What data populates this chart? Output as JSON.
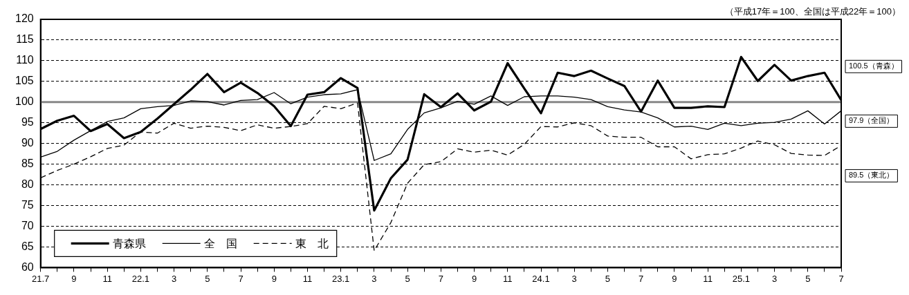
{
  "chart_data": {
    "type": "line",
    "subtitle": "（平成17年＝100、全国は平成22年＝100）",
    "categories": [
      "21.7",
      null,
      "9",
      null,
      "11",
      null,
      "22.1",
      null,
      "3",
      null,
      "5",
      null,
      "7",
      null,
      "9",
      null,
      "11",
      null,
      "23.1",
      null,
      "3",
      null,
      "5",
      null,
      "7",
      null,
      "9",
      null,
      "11",
      null,
      "24.1",
      null,
      "3",
      null,
      "5",
      null,
      "7",
      null,
      "9",
      null,
      "11",
      null,
      "25.1",
      null,
      "3",
      null,
      "5",
      null,
      "7"
    ],
    "series": [
      {
        "name": "青森県",
        "color": "#000000",
        "line_style": "solid",
        "values": [
          93.5,
          95.5,
          96.7,
          93,
          94.7,
          91.3,
          92.8,
          96,
          99.5,
          103,
          106.8,
          102.4,
          104.7,
          102.2,
          99,
          94.2,
          101.8,
          102.4,
          105.8,
          103.4,
          73.8,
          81.6,
          86.1,
          101.9,
          98.8,
          102.1,
          98,
          100.1,
          109.4,
          103.3,
          97.3,
          107.1,
          106.3,
          107.6,
          105.7,
          103.9,
          97.7,
          105.2,
          98.6,
          98.6,
          99,
          98.8,
          110.9,
          105.1,
          109,
          105.2,
          106.3,
          107.1,
          100.5
        ]
      },
      {
        "name": "全　国",
        "color": "#000000",
        "line_style": "solid",
        "values": [
          86.7,
          88.1,
          90.8,
          93.1,
          95.3,
          96.2,
          98.4,
          98.9,
          99.2,
          100.3,
          100.1,
          99.3,
          100.4,
          100.6,
          102.3,
          99.6,
          101.2,
          101.8,
          102,
          103,
          85.9,
          87.5,
          93.4,
          97.4,
          98.6,
          100.2,
          99.5,
          101.5,
          99.2,
          101.3,
          101.5,
          101.5,
          101.2,
          100.6,
          98.9,
          98.1,
          97.6,
          96.2,
          94,
          94.2,
          93.4,
          94.9,
          94.3,
          94.9,
          95.1,
          95.9,
          97.9,
          94.7,
          97.9
        ]
      },
      {
        "name": "東　北",
        "color": "#000000",
        "line_style": "dashed",
        "values": [
          81.7,
          83.5,
          85,
          86.8,
          88.8,
          89.6,
          92.8,
          92.5,
          94.9,
          93.7,
          94.2,
          93.9,
          93.1,
          94.5,
          93.7,
          94.1,
          94.8,
          99,
          98.4,
          99.8,
          64.1,
          70.9,
          80.4,
          84.9,
          85.6,
          88.7,
          87.9,
          88.4,
          87.2,
          89.8,
          94.1,
          94,
          95,
          94.3,
          91.8,
          91.5,
          91.5,
          89.2,
          89.2,
          86.3,
          87.3,
          87.5,
          88.9,
          90.6,
          89.7,
          87.6,
          87.2,
          87.1,
          89.5
        ]
      }
    ],
    "ylim": [
      60,
      120
    ],
    "yticks": [
      60,
      65,
      70,
      75,
      80,
      85,
      90,
      95,
      100,
      105,
      110,
      115,
      120
    ],
    "grid": "y",
    "legend": "bottom left",
    "marker": "none",
    "ref_lines": [
      {
        "axis": "y",
        "value": 100,
        "color": "#888888"
      }
    ],
    "annotations": [
      "100.5（青森）",
      "97.9（全国）",
      "89.5（東北）"
    ]
  }
}
